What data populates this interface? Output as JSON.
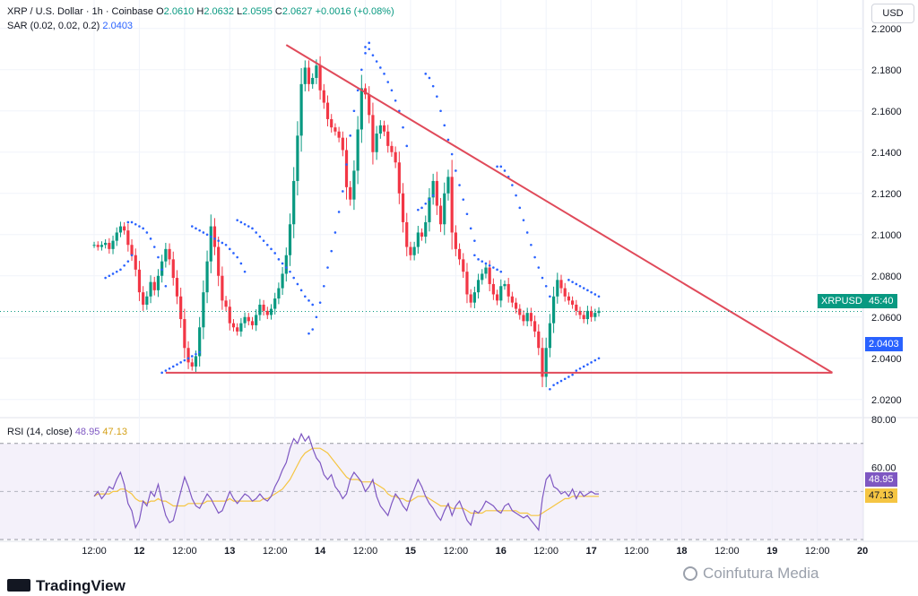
{
  "header": {
    "symbol": "XRP / U.S. Dollar · 1h · Coinbase",
    "o_label": "O",
    "o_value": "2.0610",
    "h_label": "H",
    "h_value": "2.0632",
    "l_label": "L",
    "l_value": "2.0595",
    "c_label": "C",
    "c_value": "2.0627",
    "change": "+0.0016 (+0.08%)",
    "sar_label": "SAR (0.02, 0.02, 0.2)",
    "sar_value": "2.0403"
  },
  "currency_button": "USD",
  "price_tags": {
    "symbol_tag": "XRPUSD",
    "countdown": "45:40",
    "sar_tag": "2.0403"
  },
  "rsi_header": {
    "label": "RSI (14, close)",
    "rsi_value": "48.95",
    "ma_value": "47.13"
  },
  "rsi_tags": {
    "rsi": "48.95",
    "ma": "47.13"
  },
  "branding": "TradingView",
  "watermark": "Coinfutura Media",
  "colors": {
    "up": "#089981",
    "down": "#f23645",
    "sar": "#2962ff",
    "trendline": "#e04a5a",
    "rsi": "#7e57c2",
    "rsi_ma": "#f5c542",
    "rsi_band": "#ede7f6",
    "price_line": "#089981"
  },
  "chart_data": [
    {
      "type": "candlestick",
      "title": "XRP / U.S. Dollar · 1h · Coinbase",
      "y_axis_ticks": [
        "2.2000",
        "2.1800",
        "2.1600",
        "2.1400",
        "2.1200",
        "2.1000",
        "2.0800",
        "2.0600",
        "2.0400",
        "2.0200"
      ],
      "ylim": [
        2.0125,
        2.2025
      ],
      "x_axis_ticks": [
        "12:00",
        "12",
        "12:00",
        "13",
        "12:00",
        "14",
        "12:00",
        "15",
        "12:00",
        "16",
        "12:00",
        "17",
        "12:00",
        "18",
        "12:00",
        "19",
        "12:00",
        "20"
      ],
      "last_price": 2.0627,
      "sar_last": 2.0403,
      "close_series": [
        2.095,
        2.094,
        2.095,
        2.096,
        2.093,
        2.097,
        2.101,
        2.104,
        2.102,
        2.095,
        2.09,
        2.083,
        2.072,
        2.066,
        2.07,
        2.077,
        2.073,
        2.08,
        2.087,
        2.093,
        2.088,
        2.079,
        2.07,
        2.059,
        2.045,
        2.038,
        2.036,
        2.041,
        2.055,
        2.072,
        2.087,
        2.104,
        2.094,
        2.08,
        2.068,
        2.065,
        2.057,
        2.055,
        2.053,
        2.057,
        2.06,
        2.058,
        2.056,
        2.061,
        2.066,
        2.063,
        2.061,
        2.064,
        2.069,
        2.074,
        2.081,
        2.09,
        2.105,
        2.126,
        2.148,
        2.173,
        2.181,
        2.173,
        2.176,
        2.182,
        2.17,
        2.164,
        2.156,
        2.152,
        2.15,
        2.147,
        2.141,
        2.123,
        2.117,
        2.131,
        2.151,
        2.171,
        2.168,
        2.158,
        2.14,
        2.149,
        2.153,
        2.15,
        2.143,
        2.14,
        2.135,
        2.12,
        2.106,
        2.094,
        2.09,
        2.094,
        2.101,
        2.099,
        2.106,
        2.118,
        2.126,
        2.114,
        2.105,
        2.12,
        2.128,
        2.101,
        2.093,
        2.088,
        2.082,
        2.071,
        2.067,
        2.072,
        2.078,
        2.081,
        2.084,
        2.076,
        2.071,
        2.068,
        2.075,
        2.076,
        2.07,
        2.067,
        2.064,
        2.061,
        2.058,
        2.062,
        2.058,
        2.053,
        2.045,
        2.031,
        2.045,
        2.057,
        2.07,
        2.078,
        2.074,
        2.07,
        2.068,
        2.066,
        2.063,
        2.061,
        2.059,
        2.063,
        2.06,
        2.062,
        2.063
      ],
      "sar_series": [
        {
          "t": [
            3,
            4,
            5,
            6,
            7,
            8,
            9,
            10
          ],
          "v": [
            2.079,
            2.08,
            2.081,
            2.082,
            2.083,
            2.085,
            2.087,
            2.09
          ]
        },
        {
          "t": [
            9,
            10,
            11,
            12,
            13,
            14,
            15,
            16,
            17,
            18,
            19
          ],
          "v": [
            2.106,
            2.106,
            2.105,
            2.104,
            2.103,
            2.101,
            2.098,
            2.094,
            2.089,
            2.083,
            2.075
          ]
        },
        {
          "t": [
            18,
            19,
            20,
            21,
            22,
            23,
            24,
            25,
            26,
            27,
            28
          ],
          "v": [
            2.033,
            2.034,
            2.035,
            2.036,
            2.037,
            2.038,
            2.039,
            2.04,
            2.041,
            2.042,
            2.043
          ]
        },
        {
          "t": [
            26,
            27,
            28,
            29,
            30,
            31,
            32,
            33,
            34,
            35,
            36,
            37,
            38,
            39,
            40
          ],
          "v": [
            2.104,
            2.103,
            2.102,
            2.101,
            2.1,
            2.099,
            2.098,
            2.097,
            2.096,
            2.095,
            2.093,
            2.091,
            2.089,
            2.086,
            2.082
          ]
        },
        {
          "t": [
            38,
            39,
            40,
            41,
            42,
            43,
            44,
            45,
            46,
            47,
            48,
            49,
            50,
            51,
            52,
            53,
            54,
            55,
            56,
            57,
            58
          ],
          "v": [
            2.107,
            2.106,
            2.105,
            2.104,
            2.103,
            2.101,
            2.099,
            2.097,
            2.095,
            2.093,
            2.091,
            2.088,
            2.086,
            2.084,
            2.082,
            2.079,
            2.076,
            2.073,
            2.07,
            2.068,
            2.066
          ]
        },
        {
          "t": [
            57,
            58,
            59,
            60,
            61,
            62,
            63,
            64,
            65,
            66,
            67,
            68,
            69,
            70,
            71,
            72,
            73
          ],
          "v": [
            2.052,
            2.054,
            2.06,
            2.067,
            2.075,
            2.084,
            2.092,
            2.101,
            2.111,
            2.121,
            2.134,
            2.148,
            2.16,
            2.17,
            2.18,
            2.188,
            2.193
          ]
        },
        {
          "t": [
            72,
            73,
            74,
            75,
            76,
            77,
            78,
            79,
            80,
            81,
            82,
            83
          ],
          "v": [
            2.191,
            2.19,
            2.187,
            2.184,
            2.181,
            2.178,
            2.174,
            2.17,
            2.165,
            2.16,
            2.152,
            2.143
          ]
        },
        {
          "t": [
            86,
            87,
            88,
            89,
            90
          ],
          "v": [
            2.112,
            2.113,
            2.115,
            2.117,
            2.119
          ]
        },
        {
          "t": [
            88,
            89,
            90,
            91,
            92,
            93,
            94,
            95,
            96,
            97,
            98,
            99,
            100,
            101
          ],
          "v": [
            2.178,
            2.176,
            2.172,
            2.167,
            2.16,
            2.153,
            2.146,
            2.139,
            2.131,
            2.124,
            2.117,
            2.11,
            2.103,
            2.097
          ]
        },
        {
          "t": [
            101,
            102,
            103,
            104,
            105,
            106,
            107,
            108
          ],
          "v": [
            2.09,
            2.088,
            2.087,
            2.086,
            2.085,
            2.084,
            2.083,
            2.082
          ]
        },
        {
          "t": [
            107,
            108,
            109,
            110,
            111,
            112,
            113,
            114,
            115,
            116,
            117,
            118,
            119,
            120,
            121
          ],
          "v": [
            2.133,
            2.133,
            2.131,
            2.128,
            2.124,
            2.119,
            2.113,
            2.107,
            2.101,
            2.095,
            2.089,
            2.084,
            2.079,
            2.075,
            2.07
          ]
        },
        {
          "t": [
            121,
            122,
            123,
            124,
            125,
            126,
            127,
            128,
            129,
            130,
            131,
            132,
            133,
            134
          ],
          "v": [
            2.025,
            2.027,
            2.028,
            2.029,
            2.03,
            2.031,
            2.032,
            2.034,
            2.035,
            2.036,
            2.037,
            2.038,
            2.039,
            2.04
          ]
        },
        {
          "t": [
            126,
            127,
            128,
            129,
            130,
            131,
            132,
            133,
            134
          ],
          "v": [
            2.078,
            2.077,
            2.076,
            2.075,
            2.074,
            2.073,
            2.072,
            2.071,
            2.07
          ]
        }
      ],
      "triangle": {
        "apex_start": {
          "t": 51,
          "v": 2.192
        },
        "descending_end": {
          "t": 196,
          "v": 2.033
        },
        "support_start": {
          "t": 19,
          "v": 2.033
        },
        "support_end": {
          "t": 196,
          "v": 2.033
        }
      }
    },
    {
      "type": "line",
      "title": "RSI (14, close)",
      "y_axis_ticks": [
        "80.00",
        "60.00"
      ],
      "ylim": [
        30,
        80
      ],
      "band": [
        30,
        70
      ],
      "midline": 50,
      "rsi_last": 48.95,
      "ma_last": 47.13,
      "rsi_series": [
        48,
        50,
        47,
        49,
        52,
        51,
        55,
        58,
        53,
        45,
        42,
        35,
        38,
        46,
        44,
        50,
        48,
        53,
        46,
        40,
        37,
        38,
        44,
        50,
        56,
        52,
        47,
        44,
        43,
        46,
        49,
        47,
        44,
        41,
        42,
        46,
        50,
        47,
        45,
        47,
        49,
        48,
        46,
        47,
        49,
        47,
        46,
        48,
        52,
        55,
        59,
        62,
        68,
        72,
        70,
        74,
        71,
        73,
        68,
        64,
        62,
        57,
        55,
        57,
        52,
        50,
        47,
        49,
        55,
        58,
        56,
        54,
        50,
        52,
        55,
        48,
        44,
        42,
        40,
        45,
        49,
        47,
        44,
        42,
        47,
        51,
        55,
        52,
        48,
        45,
        43,
        40,
        38,
        42,
        45,
        40,
        44,
        46,
        42,
        38,
        36,
        42,
        41,
        43,
        46,
        45,
        44,
        42,
        41,
        44,
        45,
        42,
        41,
        40,
        39,
        40,
        38,
        36,
        34,
        47,
        55,
        57,
        52,
        51,
        49,
        50,
        48,
        51,
        47,
        50,
        48,
        49,
        50,
        49,
        49
      ],
      "ma_series": [
        48,
        49,
        49,
        49,
        49,
        50,
        50,
        51,
        51,
        50,
        49,
        47,
        46,
        46,
        45,
        46,
        46,
        47,
        46,
        46,
        45,
        44,
        44,
        44,
        44,
        45,
        45,
        45,
        45,
        45,
        46,
        46,
        46,
        46,
        46,
        46,
        47,
        46,
        46,
        46,
        46,
        46,
        46,
        46,
        46,
        47,
        47,
        48,
        49,
        50,
        51,
        53,
        55,
        58,
        61,
        64,
        66,
        67,
        68,
        68,
        68,
        67,
        66,
        64,
        62,
        60,
        58,
        56,
        55,
        55,
        55,
        54,
        54,
        54,
        54,
        53,
        52,
        51,
        49,
        48,
        48,
        47,
        47,
        46,
        46,
        47,
        48,
        48,
        48,
        47,
        46,
        45,
        44,
        44,
        44,
        43,
        43,
        43,
        43,
        42,
        41,
        41,
        41,
        41,
        42,
        42,
        42,
        42,
        42,
        42,
        42,
        42,
        42,
        41,
        41,
        41,
        40,
        40,
        40,
        41,
        42,
        43,
        44,
        45,
        46,
        47,
        47,
        48,
        48,
        48,
        48,
        48,
        48,
        48,
        48
      ]
    }
  ]
}
